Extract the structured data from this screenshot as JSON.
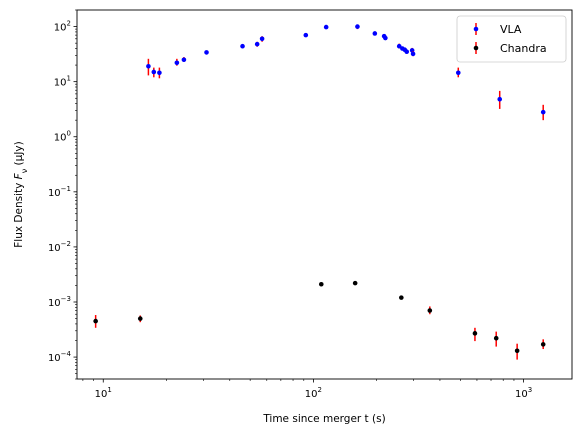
{
  "chart_data": {
    "type": "scatter",
    "title": "",
    "xlabel": "Time since merger t (s)",
    "ylabel": "Flux Density Fν (μJy)",
    "ylabel_parts": {
      "base": "Flux Density ",
      "sym": "F",
      "sub": "ν",
      "unit": " (μJy)"
    },
    "x_scale": "log",
    "y_scale": "log",
    "xlim": [
      7.5,
      1700
    ],
    "ylim": [
      4e-05,
      200
    ],
    "x_ticks": [
      {
        "value": 10,
        "base": "10",
        "exp": "1"
      },
      {
        "value": 100,
        "base": "10",
        "exp": "2"
      },
      {
        "value": 1000,
        "base": "10",
        "exp": "3"
      }
    ],
    "y_ticks": [
      {
        "value": 0.0001,
        "base": "10",
        "exp": "−4"
      },
      {
        "value": 0.001,
        "base": "10",
        "exp": "−3"
      },
      {
        "value": 0.01,
        "base": "10",
        "exp": "−2"
      },
      {
        "value": 0.1,
        "base": "10",
        "exp": "−1"
      },
      {
        "value": 1,
        "base": "10",
        "exp": "0"
      },
      {
        "value": 10,
        "base": "10",
        "exp": "1"
      },
      {
        "value": 100,
        "base": "10",
        "exp": "2"
      }
    ],
    "grid": false,
    "legend_position": "top-right",
    "errorbar_color": "#ff0000",
    "series": [
      {
        "name": "VLA",
        "color": "#0000ff",
        "points": [
          {
            "x": 16.4,
            "y": 19,
            "ylo": 13,
            "yhi": 26
          },
          {
            "x": 17.4,
            "y": 15,
            "ylo": 12,
            "yhi": 18
          },
          {
            "x": 18.5,
            "y": 14.5,
            "ylo": 11.5,
            "yhi": 18
          },
          {
            "x": 22.4,
            "y": 22,
            "ylo": 19.5,
            "yhi": 26
          },
          {
            "x": 24.2,
            "y": 25,
            "ylo": 23,
            "yhi": 28
          },
          {
            "x": 31,
            "y": 34
          },
          {
            "x": 46,
            "y": 44
          },
          {
            "x": 54,
            "y": 48,
            "ylo": 43,
            "yhi": 53
          },
          {
            "x": 57,
            "y": 60,
            "ylo": 53,
            "yhi": 67
          },
          {
            "x": 92,
            "y": 70
          },
          {
            "x": 115,
            "y": 98
          },
          {
            "x": 162,
            "y": 100,
            "ylo": 90,
            "yhi": 108
          },
          {
            "x": 196,
            "y": 75
          },
          {
            "x": 217,
            "y": 67,
            "ylo": 60,
            "yhi": 73
          },
          {
            "x": 220,
            "y": 62
          },
          {
            "x": 256,
            "y": 44,
            "ylo": 40,
            "yhi": 49
          },
          {
            "x": 265,
            "y": 40
          },
          {
            "x": 272,
            "y": 38
          },
          {
            "x": 278,
            "y": 35
          },
          {
            "x": 295,
            "y": 37,
            "ylo": 33,
            "yhi": 41
          },
          {
            "x": 298,
            "y": 32,
            "ylo": 29,
            "yhi": 36
          },
          {
            "x": 489,
            "y": 14.5,
            "ylo": 12,
            "yhi": 18
          },
          {
            "x": 770,
            "y": 4.8,
            "ylo": 3.2,
            "yhi": 6.8
          },
          {
            "x": 1240,
            "y": 2.8,
            "ylo": 2.0,
            "yhi": 3.8
          }
        ]
      },
      {
        "name": "Chandra",
        "color": "#000000",
        "points": [
          {
            "x": 9.2,
            "y": 0.00045,
            "ylo": 0.00034,
            "yhi": 0.00058
          },
          {
            "x": 15,
            "y": 0.0005,
            "ylo": 0.00043,
            "yhi": 0.00057
          },
          {
            "x": 109,
            "y": 0.0021
          },
          {
            "x": 158,
            "y": 0.0022
          },
          {
            "x": 262,
            "y": 0.0012
          },
          {
            "x": 358,
            "y": 0.0007,
            "ylo": 0.0006,
            "yhi": 0.00083
          },
          {
            "x": 587,
            "y": 0.00027,
            "ylo": 0.000195,
            "yhi": 0.00034
          },
          {
            "x": 741,
            "y": 0.00022,
            "ylo": 0.000155,
            "yhi": 0.00029
          },
          {
            "x": 932,
            "y": 0.00013,
            "ylo": 9e-05,
            "yhi": 0.000175
          },
          {
            "x": 1240,
            "y": 0.00017,
            "ylo": 0.00014,
            "yhi": 0.00021
          }
        ]
      }
    ]
  }
}
